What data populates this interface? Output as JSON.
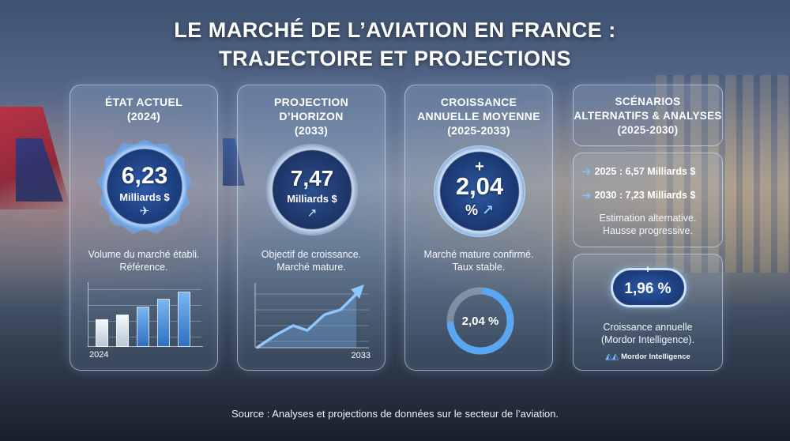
{
  "title_line1": "LE MARCHÉ DE L’AVIATION EN FRANCE :",
  "title_line2": "TRAJECTOIRE ET PROJECTIONS",
  "panels": [
    {
      "title": [
        "ÉTAT ACTUEL",
        "(2024)"
      ],
      "value": "6,23",
      "unit": "Milliards $",
      "icon": "airplane-icon",
      "caption": [
        "Volume du marché établi.",
        "Référence."
      ],
      "axis_label": "2024",
      "bar_chart": {
        "type": "bar",
        "values": [
          0.45,
          0.53,
          0.65,
          0.78,
          0.9
        ]
      }
    },
    {
      "title": [
        "PROJECTION",
        "D’HORIZON",
        "(2033)"
      ],
      "value": "7,47",
      "unit": "Milliards $",
      "icon": "trend-up-icon",
      "caption": [
        "Objectif de croissance.",
        "Marché mature."
      ],
      "axis_label": "2033"
    },
    {
      "title": [
        "CROISSANCE",
        "ANNUELLE MOYENNE",
        "(2025-2033)"
      ],
      "plus": "+",
      "value": "2,04",
      "unit": "%",
      "icon": "trend-up-icon",
      "caption": [
        "Marché mature confirmé.",
        "Taux stable."
      ],
      "donut_label": "2,04 %",
      "donut_fraction": 0.7
    }
  ],
  "scenarios": {
    "title": [
      "SCÉNARIOS",
      "ALTERNATIFS & ANALYSES",
      "(2025-2030)"
    ],
    "rows": [
      "2025 : 6,57 Milliards $",
      "2030 : 7,23 Milliards $"
    ],
    "caption": [
      "Estimation alternative.",
      "Hausse progressive."
    ],
    "plus": "+",
    "value": "1,96 %",
    "caption2": [
      "Croissance annuelle",
      "(Mordor Intelligence)."
    ],
    "brand": "Mordor Intelligence"
  },
  "source": "Source : Analyses et projections de données sur le secteur de l’aviation.",
  "colors": {
    "accent": "#3f7fd6",
    "bar_light": "#dfe6ef",
    "bar_blue": "#4e95e0"
  }
}
